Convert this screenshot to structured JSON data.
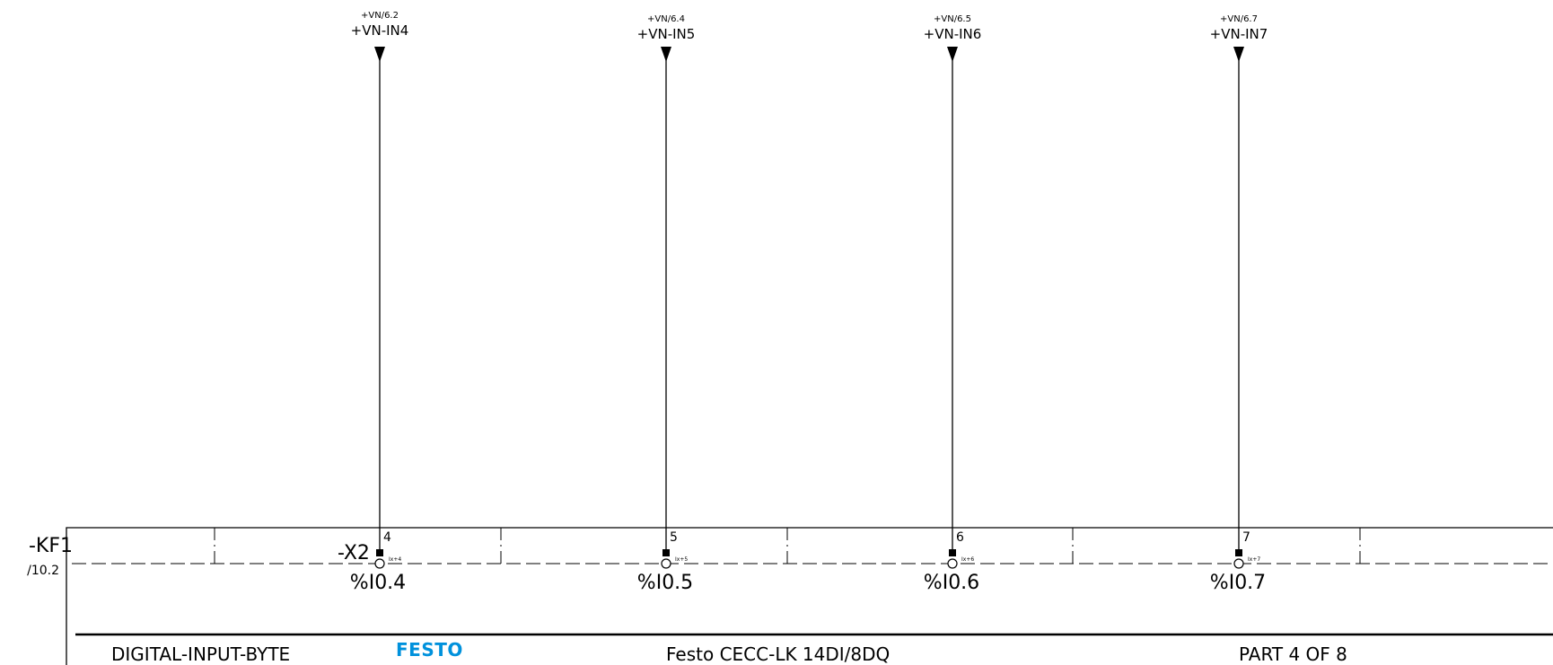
{
  "device": {
    "tag": "-KF1",
    "page_ref": "/10.2",
    "connector": "-X2"
  },
  "channels": [
    {
      "ref": "+VN/6.2",
      "signal": "+VN-IN4",
      "pin": "4",
      "pin_label": "Ix+4",
      "address": "%I0.4"
    },
    {
      "ref": "+VN/6.4",
      "signal": "+VN-IN5",
      "pin": "5",
      "pin_label": "Ix+5",
      "address": "%I0.5"
    },
    {
      "ref": "+VN/6.5",
      "signal": "+VN-IN6",
      "pin": "6",
      "pin_label": "Ix+6",
      "address": "%I0.6"
    },
    {
      "ref": "+VN/6.7",
      "signal": "+VN-IN7",
      "pin": "7",
      "pin_label": "Ix+7",
      "address": "%I0.7"
    }
  ],
  "title_block": {
    "function": "DIGITAL-INPUT-BYTE",
    "logo": "FESTO",
    "product": "Festo CECC-LK 14DI/8DQ",
    "part": "PART 4 OF 8"
  },
  "colors": {
    "line": "#000000",
    "logo": "#0091dc"
  }
}
